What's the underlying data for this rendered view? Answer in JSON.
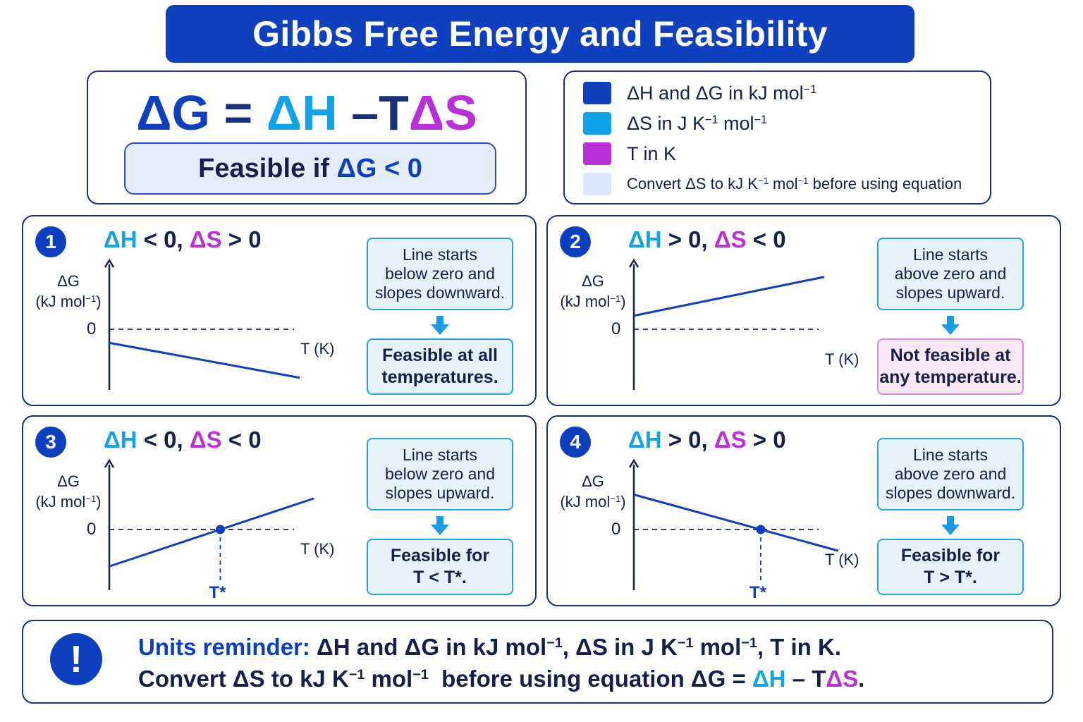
{
  "title": "Gibbs Free Energy and Feasibility",
  "equation": {
    "dG": "ΔG",
    "eq": "=",
    "dH": "ΔH",
    "minus": "–",
    "T": "T",
    "dS": "ΔS"
  },
  "feasible_rule": {
    "prefix": "Feasible if",
    "dG": "ΔG",
    "cond": "< 0"
  },
  "legend": [
    {
      "pre": "ΔH and ΔG in kJ mol",
      "sup1": "−1",
      "mid": "",
      "sup2": "",
      "post": "",
      "color": "#0d3fbf"
    },
    {
      "pre": "ΔS in J K",
      "sup1": "−1",
      "mid": " mol",
      "sup2": "−1",
      "post": "",
      "color": "#10a3e8"
    },
    {
      "pre": "T in K",
      "sup1": "",
      "mid": "",
      "sup2": "",
      "post": "",
      "color": "#b930d6"
    },
    {
      "pre": "Convert ΔS to kJ K",
      "sup1": "−1",
      "mid": " mol",
      "sup2": "−1",
      "post": " before using equation",
      "color": "#dbe8fb"
    }
  ],
  "colors": {
    "primary": "#0d3fbf",
    "sky": "#10a3e8",
    "magenta": "#b930d6",
    "dark": "#14204a",
    "border": "#1a2f7a"
  },
  "axes": {
    "ylabel_line1": "ΔG",
    "ylabel_line2": "(kJ mol",
    "ylabel_sup": "−1",
    "ylabel_close": ")",
    "zero": "0",
    "xlabel": "T (K)",
    "tstar": "T*"
  },
  "cases": [
    {
      "num": "1",
      "dH": "ΔH",
      "dH_sign": " < 0, ",
      "dS": "ΔS",
      "dS_sign": " > 0",
      "info_lines": [
        "Line starts",
        "below zero and",
        "slopes downward."
      ],
      "result_lines": [
        "Feasible at all",
        "temperatures."
      ],
      "result_bad": false,
      "graph": {
        "start": -0.35,
        "end": -1.25,
        "crosses": false
      }
    },
    {
      "num": "2",
      "dH": "ΔH",
      "dH_sign": " > 0, ",
      "dS": "ΔS",
      "dS_sign": " < 0",
      "info_lines": [
        "Line starts",
        "above zero and",
        "slopes upward."
      ],
      "result_lines": [
        "Not feasible at",
        "any temperature."
      ],
      "result_bad": true,
      "graph": {
        "start": 0.35,
        "end": 1.35,
        "crosses": false
      }
    },
    {
      "num": "3",
      "dH": "ΔH",
      "dH_sign": " < 0, ",
      "dS": "ΔS",
      "dS_sign": " < 0",
      "info_lines": [
        "Line starts",
        "below zero and",
        "slopes upward."
      ],
      "result_lines": [
        "Feasible for",
        "T < T*."
      ],
      "result_bad": false,
      "graph": {
        "start": -0.95,
        "end": 0.8,
        "crosses": true
      }
    },
    {
      "num": "4",
      "dH": "ΔH",
      "dH_sign": " > 0, ",
      "dS": "ΔS",
      "dS_sign": " > 0",
      "info_lines": [
        "Line starts",
        "above zero and",
        "slopes downward."
      ],
      "result_lines": [
        "Feasible for",
        "T > T*."
      ],
      "result_bad": false,
      "graph": {
        "start": 0.9,
        "end": -0.55,
        "crosses": true
      }
    }
  ],
  "units_reminder": {
    "icon": "!",
    "label": "Units reminder:",
    "line1_a": " ΔH and ΔG in kJ mol",
    "line1_sup1": "−1",
    "line1_b": ", ΔS in J K",
    "line1_sup2": "−1",
    "line1_c": " mol",
    "line1_sup3": "−1",
    "line1_d": ", T in K.",
    "line2_a": "Convert ΔS to kJ K",
    "line2_sup1": "−1",
    "line2_b": " mol",
    "line2_sup2": "−1",
    "line2_c": "  before using equation ΔG = ",
    "line2_dH": "ΔH",
    "line2_minus": " – T",
    "line2_dS": "ΔS",
    "line2_end": "."
  }
}
